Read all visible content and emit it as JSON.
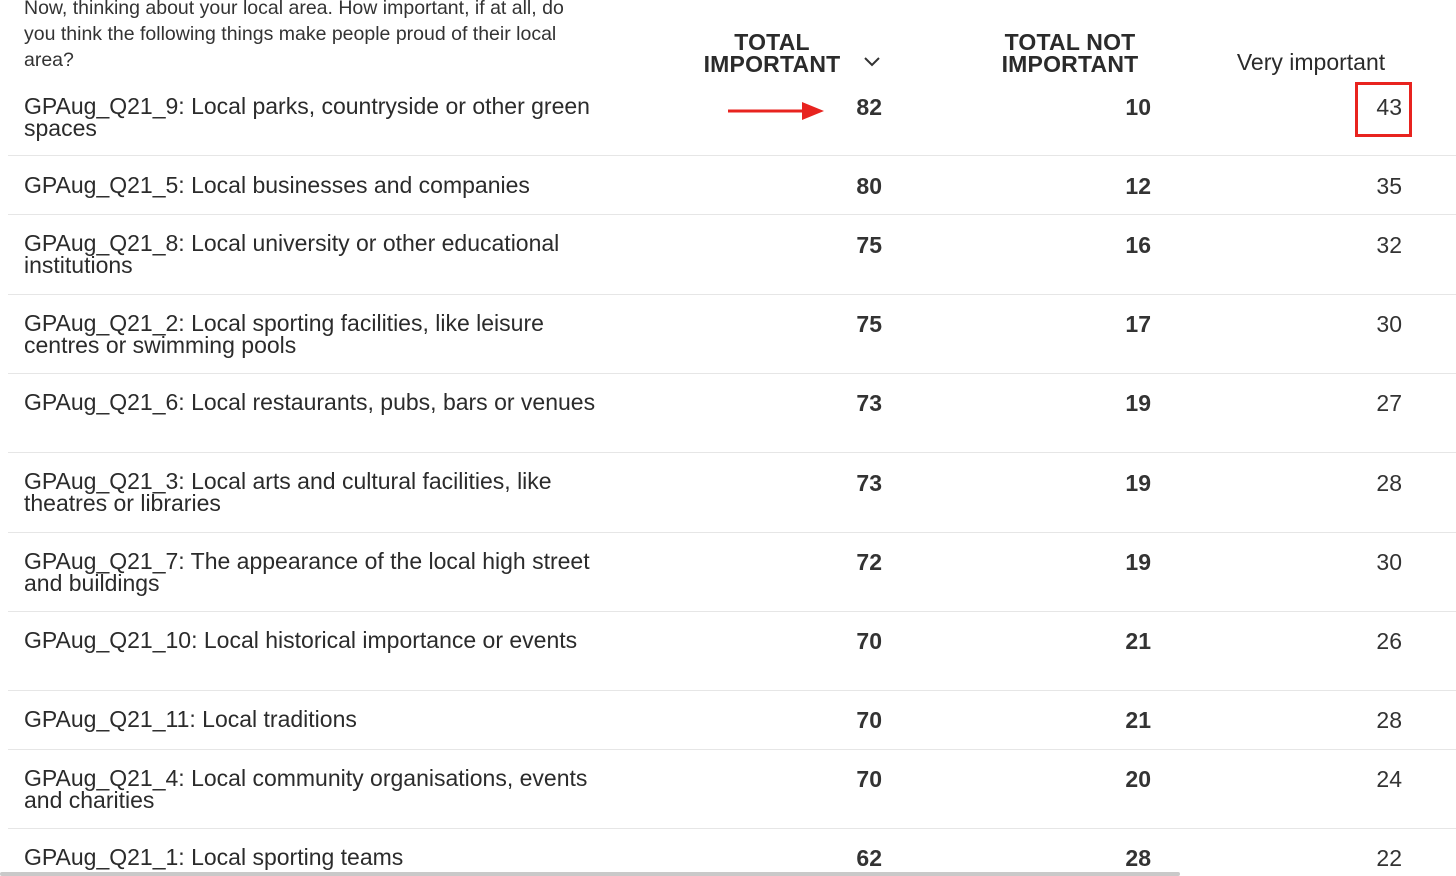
{
  "question": "Now, thinking about your local area. How important, if at all, do you think the following things make people proud of their local area?",
  "columns": {
    "total_important": "TOTAL IMPORTANT",
    "total_not_important": "TOTAL NOT IMPORTANT",
    "very_important": "Very important"
  },
  "sort_icon": "chevron-down-icon",
  "annotation_color": "#e8231f",
  "rows": [
    {
      "label": "GPAug_Q21_9: Local parks, countryside or other green spaces",
      "total_important": "82",
      "total_not_important": "10",
      "very_important": "43"
    },
    {
      "label": "GPAug_Q21_5: Local businesses and companies",
      "total_important": "80",
      "total_not_important": "12",
      "very_important": "35"
    },
    {
      "label": "GPAug_Q21_8: Local university or other educational institutions",
      "total_important": "75",
      "total_not_important": "16",
      "very_important": "32"
    },
    {
      "label": "GPAug_Q21_2: Local sporting facilities, like leisure centres or swimming pools",
      "total_important": "75",
      "total_not_important": "17",
      "very_important": "30"
    },
    {
      "label": "GPAug_Q21_6: Local restaurants, pubs, bars or venues",
      "total_important": "73",
      "total_not_important": "19",
      "very_important": "27"
    },
    {
      "label": "GPAug_Q21_3: Local arts and cultural facilities, like theatres or libraries",
      "total_important": "73",
      "total_not_important": "19",
      "very_important": "28"
    },
    {
      "label": "GPAug_Q21_7: The appearance of the local high street and buildings",
      "total_important": "72",
      "total_not_important": "19",
      "very_important": "30"
    },
    {
      "label": "GPAug_Q21_10: Local historical importance or events",
      "total_important": "70",
      "total_not_important": "21",
      "very_important": "26"
    },
    {
      "label": "GPAug_Q21_11: Local traditions",
      "total_important": "70",
      "total_not_important": "21",
      "very_important": "28"
    },
    {
      "label": "GPAug_Q21_4: Local community organisations, events and charities",
      "total_important": "70",
      "total_not_important": "20",
      "very_important": "24"
    },
    {
      "label": "GPAug_Q21_1: Local sporting teams",
      "total_important": "62",
      "total_not_important": "28",
      "very_important": "22"
    }
  ]
}
